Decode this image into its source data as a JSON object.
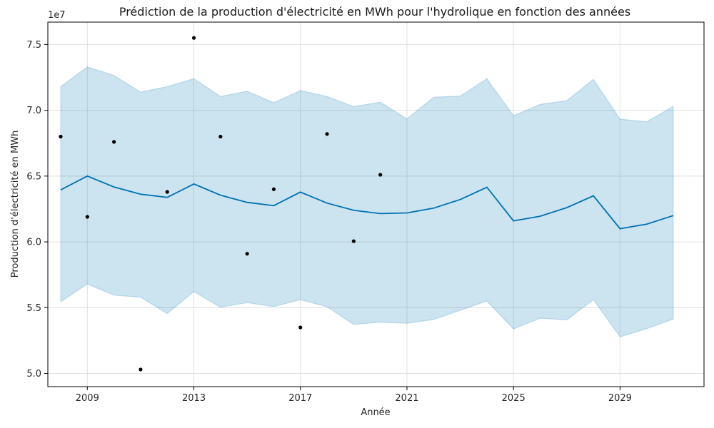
{
  "chart_data": {
    "type": "line",
    "title": "Prédiction de la production d'électricité en MWh pour l'hydrolique en fonction des années",
    "xlabel": "Année",
    "ylabel": "Production d'électricité en MWh",
    "y_scale_label": "1e7",
    "xlim": [
      2008,
      2031
    ],
    "ylim": [
      49000000,
      76700000
    ],
    "x_ticks": [
      2009,
      2013,
      2017,
      2021,
      2025,
      2029
    ],
    "x_tick_labels": [
      "2009",
      "2013",
      "2017",
      "2021",
      "2025",
      "2029"
    ],
    "y_ticks": [
      50000000,
      55000000,
      60000000,
      65000000,
      70000000,
      75000000
    ],
    "y_tick_labels": [
      "5.0",
      "5.5",
      "6.0",
      "6.5",
      "7.0",
      "7.5"
    ],
    "grid": true,
    "colors": {
      "forecast_line": "#0072b2",
      "interval_fill": "#0072b2",
      "observed_points": "#000000"
    },
    "forecast": {
      "x": [
        2008,
        2009,
        2010,
        2011,
        2012,
        2013,
        2014,
        2015,
        2016,
        2017,
        2018,
        2019,
        2020,
        2021,
        2022,
        2023,
        2024,
        2025,
        2026,
        2027,
        2028,
        2029,
        2030,
        2031
      ],
      "yhat": [
        63950000,
        65000000,
        64170000,
        63620000,
        63380000,
        64400000,
        63550000,
        63000000,
        62750000,
        63780000,
        62950000,
        62400000,
        62150000,
        62200000,
        62560000,
        63220000,
        64150000,
        61600000,
        61950000,
        62600000,
        63500000,
        61000000,
        61350000,
        62000000
      ],
      "yhat_upper": [
        71800000,
        73300000,
        72650000,
        71380000,
        71800000,
        72400000,
        71050000,
        71450000,
        70580000,
        71500000,
        71050000,
        70280000,
        70620000,
        69350000,
        71000000,
        71080000,
        72400000,
        69580000,
        70450000,
        70730000,
        72350000,
        69330000,
        69130000,
        70300000
      ],
      "yhat_lower": [
        55450000,
        56800000,
        55950000,
        55800000,
        54550000,
        56220000,
        55030000,
        55380000,
        55080000,
        55600000,
        55070000,
        53720000,
        53900000,
        53810000,
        54100000,
        54800000,
        55500000,
        53380000,
        54200000,
        54070000,
        55600000,
        52780000,
        53400000,
        54140000
      ]
    },
    "observed": {
      "x": [
        2008,
        2009,
        2010,
        2011,
        2012,
        2013,
        2014,
        2015,
        2016,
        2017,
        2018,
        2019,
        2020
      ],
      "y": [
        68000000,
        61900000,
        67600000,
        50300000,
        63800000,
        75500000,
        68000000,
        59100000,
        64000000,
        53500000,
        68200000,
        60050000,
        65100000
      ]
    }
  }
}
